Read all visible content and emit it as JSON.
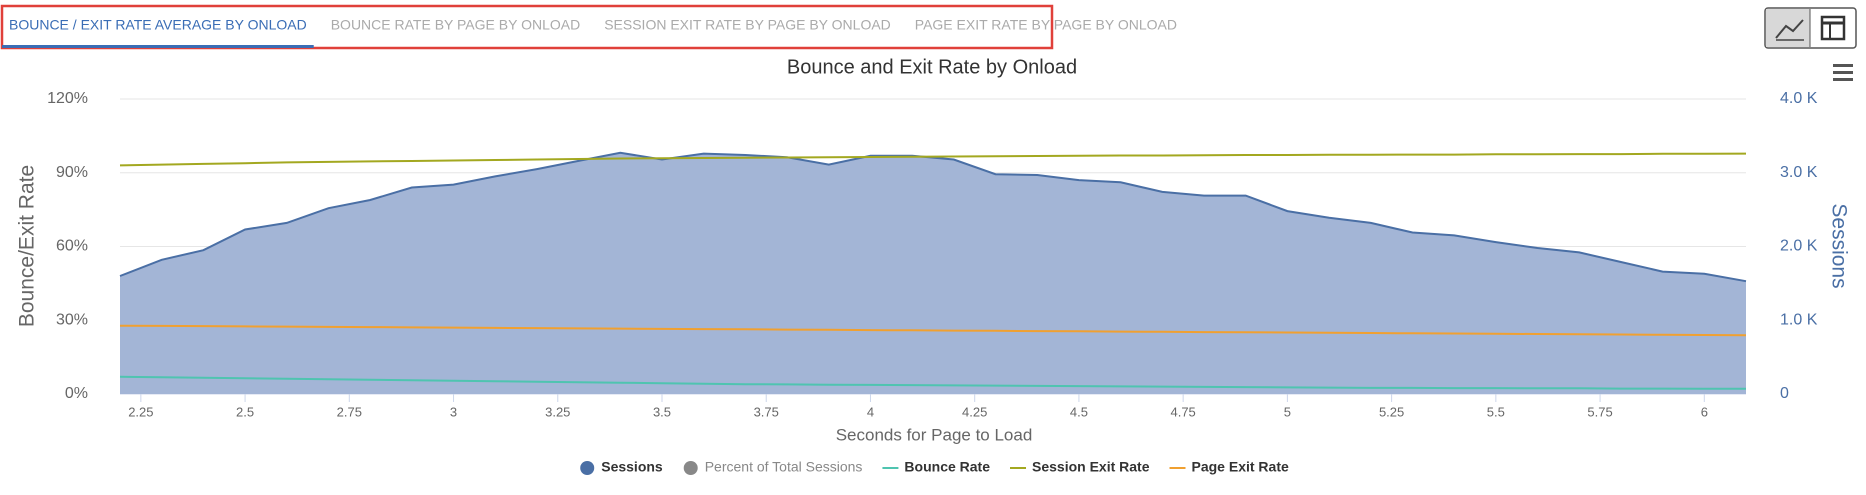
{
  "tabs": [
    "BOUNCE / EXIT RATE AVERAGE BY ONLOAD",
    "BOUNCE RATE BY PAGE BY ONLOAD",
    "SESSION EXIT RATE BY PAGE BY ONLOAD",
    "PAGE EXIT RATE BY PAGE BY ONLOAD"
  ],
  "chart_data": {
    "type": "area-line",
    "title": "Bounce and Exit Rate by Onload",
    "xlabel": "Seconds for Page to Load",
    "ylabel": "Bounce/Exit Rate",
    "y2label": "Sessions",
    "x": [
      2.2,
      2.3,
      2.4,
      2.5,
      2.6,
      2.7,
      2.8,
      2.9,
      3.0,
      3.1,
      3.2,
      3.3,
      3.4,
      3.5,
      3.6,
      3.7,
      3.8,
      3.9,
      4.0,
      4.1,
      4.2,
      4.3,
      4.4,
      4.5,
      4.6,
      4.7,
      4.8,
      4.9,
      5.0,
      5.1,
      5.2,
      5.3,
      5.4,
      5.5,
      5.6,
      5.7,
      5.8,
      5.9,
      6.0,
      6.1
    ],
    "xlim": [
      2.2,
      6.1
    ],
    "xticks": [
      2.25,
      2.5,
      2.75,
      3,
      3.25,
      3.5,
      3.75,
      4,
      4.25,
      4.5,
      4.75,
      5,
      5.25,
      5.5,
      5.75,
      6
    ],
    "ylim": [
      0,
      120
    ],
    "yticks": [
      {
        "value": 0,
        "label": "0%"
      },
      {
        "value": 30,
        "label": "30%"
      },
      {
        "value": 60,
        "label": "60%"
      },
      {
        "value": 90,
        "label": "90%"
      },
      {
        "value": 120,
        "label": "120%"
      }
    ],
    "y2lim": [
      0,
      4000
    ],
    "y2ticks": [
      0,
      {
        "value": 1000,
        "label": "1.0 K"
      },
      {
        "value": 2000,
        "label": "2.0 K"
      },
      {
        "value": 3000,
        "label": "3.0 K"
      },
      {
        "value": 4000,
        "label": "4.0 K"
      }
    ],
    "grid": true,
    "legend": "bottom",
    "series": [
      {
        "name": "Sessions",
        "color": "#4a6fa5",
        "fill": "#a3b5d6",
        "kind": "area",
        "axis": "y2",
        "values": [
          1600,
          1820,
          1950,
          2230,
          2320,
          2520,
          2630,
          2800,
          2840,
          2950,
          3050,
          3160,
          3270,
          3180,
          3260,
          3240,
          3210,
          3110,
          3230,
          3230,
          3180,
          2980,
          2970,
          2900,
          2870,
          2740,
          2690,
          2690,
          2480,
          2390,
          2320,
          2190,
          2150,
          2060,
          1980,
          1920,
          1790,
          1660,
          1630,
          1530
        ]
      },
      {
        "name": "Percent of Total Sessions",
        "color": "#888888",
        "kind": "hidden"
      },
      {
        "name": "Bounce Rate",
        "color": "#4fc4b0",
        "kind": "line",
        "values": [
          7.0,
          6.8,
          6.6,
          6.4,
          6.2,
          6.0,
          5.8,
          5.6,
          5.4,
          5.2,
          5.0,
          4.8,
          4.6,
          4.4,
          4.2,
          4.0,
          3.9,
          3.8,
          3.7,
          3.6,
          3.5,
          3.4,
          3.3,
          3.2,
          3.1,
          3.0,
          2.9,
          2.8,
          2.7,
          2.6,
          2.5,
          2.5,
          2.4,
          2.4,
          2.3,
          2.3,
          2.2,
          2.2,
          2.1,
          2.1
        ]
      },
      {
        "name": "Session Exit Rate",
        "color": "#a3a820",
        "kind": "line",
        "values": [
          93.0,
          93.3,
          93.6,
          93.9,
          94.2,
          94.4,
          94.6,
          94.8,
          95.0,
          95.2,
          95.4,
          95.6,
          95.8,
          95.9,
          96.0,
          96.1,
          96.2,
          96.3,
          96.4,
          96.5,
          96.6,
          96.7,
          96.8,
          96.9,
          97.0,
          97.0,
          97.1,
          97.2,
          97.2,
          97.3,
          97.3,
          97.4,
          97.4,
          97.5,
          97.5,
          97.6,
          97.6,
          97.7,
          97.7,
          97.8
        ]
      },
      {
        "name": "Page Exit Rate",
        "color": "#f0a030",
        "kind": "line",
        "values": [
          27.8,
          27.7,
          27.6,
          27.5,
          27.4,
          27.3,
          27.2,
          27.1,
          27.0,
          26.9,
          26.8,
          26.7,
          26.6,
          26.5,
          26.4,
          26.3,
          26.2,
          26.1,
          26.0,
          25.9,
          25.8,
          25.7,
          25.6,
          25.5,
          25.4,
          25.3,
          25.2,
          25.1,
          25.0,
          24.9,
          24.8,
          24.7,
          24.6,
          24.5,
          24.4,
          24.3,
          24.2,
          24.1,
          24.0,
          23.9
        ]
      }
    ]
  }
}
